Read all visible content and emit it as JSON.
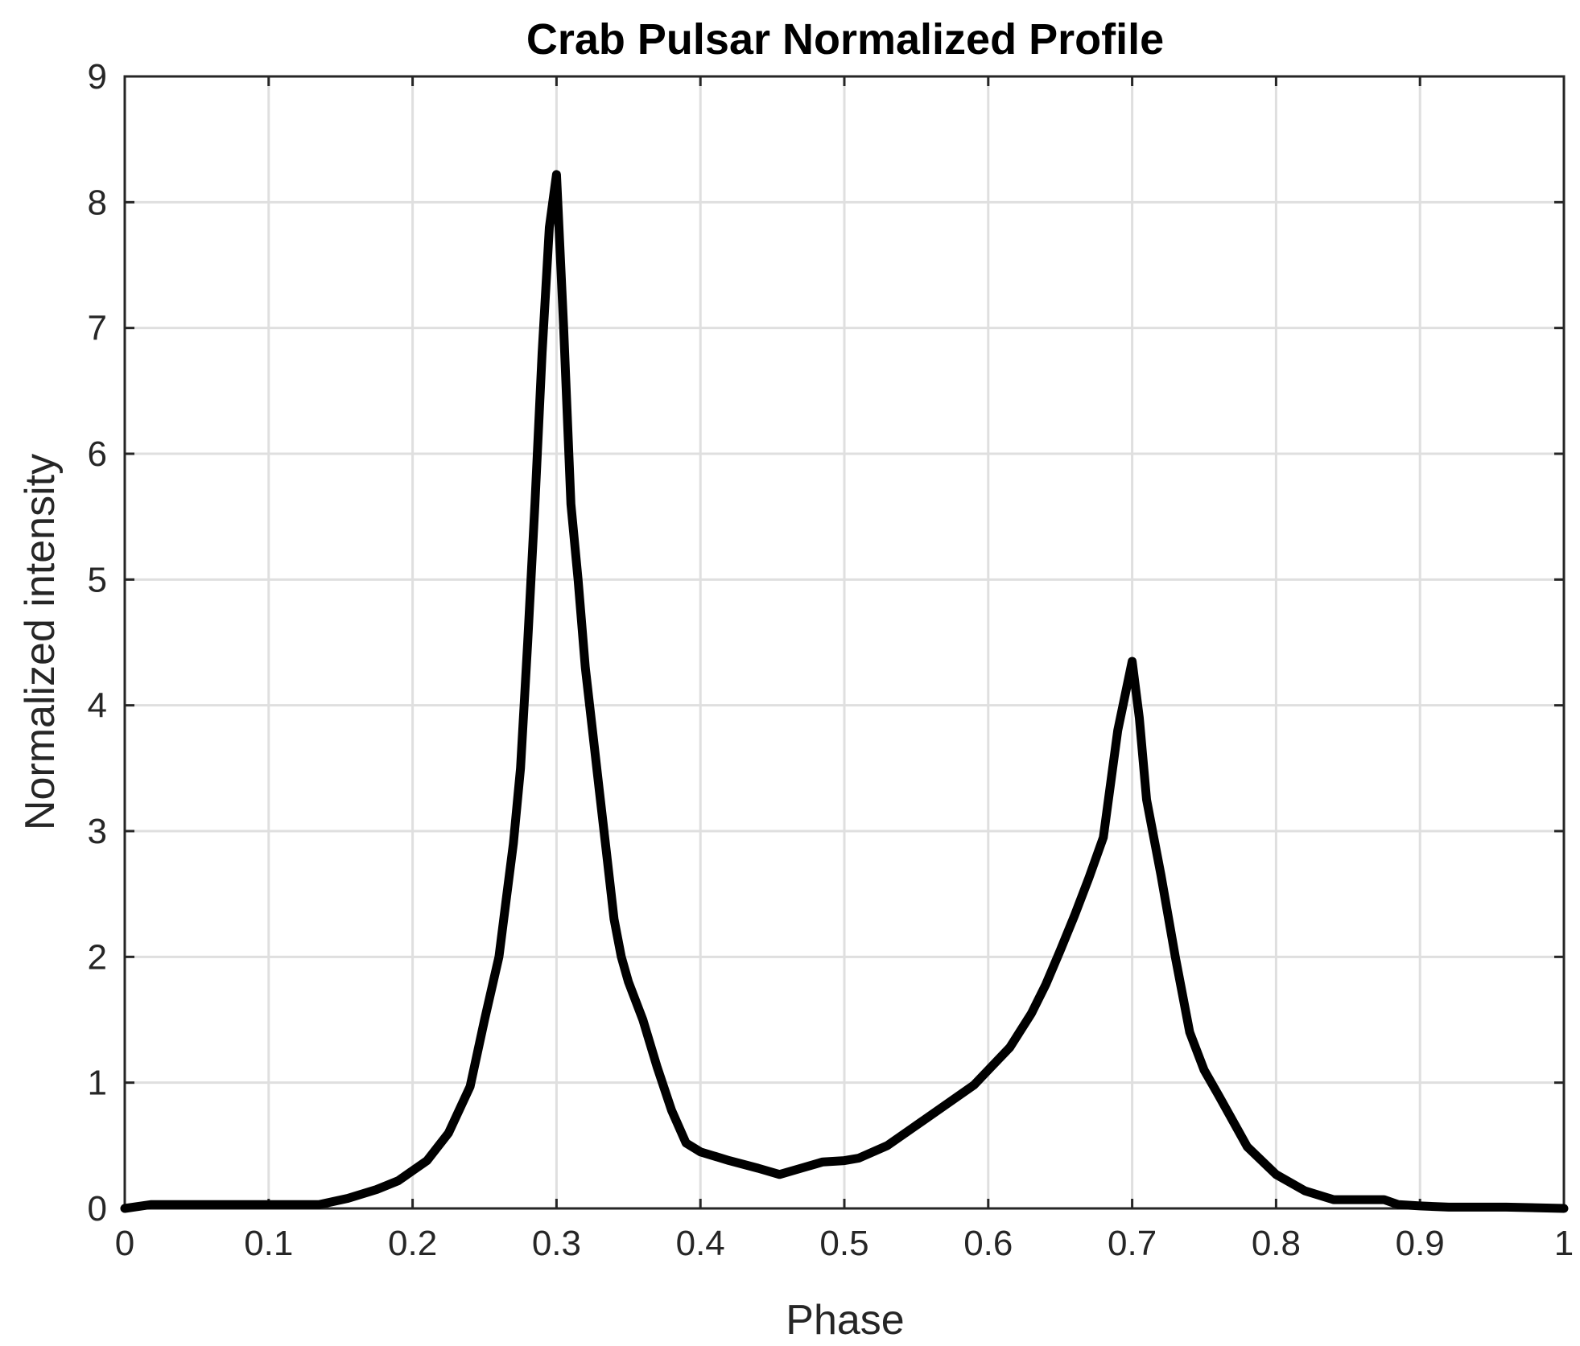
{
  "chart_data": {
    "type": "line",
    "title": "Crab Pulsar Normalized Profile",
    "xlabel": "Phase",
    "ylabel": "Normalized intensity",
    "xlim": [
      0,
      1
    ],
    "ylim": [
      0,
      9
    ],
    "x_ticks": [
      0,
      0.1,
      0.2,
      0.3,
      0.4,
      0.5,
      0.6,
      0.7,
      0.8,
      0.9,
      1
    ],
    "x_tick_labels": [
      "0",
      "0.1",
      "0.2",
      "0.3",
      "0.4",
      "0.5",
      "0.6",
      "0.7",
      "0.8",
      "0.9",
      "1"
    ],
    "y_ticks": [
      0,
      1,
      2,
      3,
      4,
      5,
      6,
      7,
      8,
      9
    ],
    "y_tick_labels": [
      "0",
      "1",
      "2",
      "3",
      "4",
      "5",
      "6",
      "7",
      "8",
      "9"
    ],
    "grid": true,
    "legend": "none",
    "series": [
      {
        "color": "#000000",
        "x": [
          0,
          0.018,
          0.035,
          0.06,
          0.09,
          0.12,
          0.135,
          0.155,
          0.175,
          0.19,
          0.21,
          0.225,
          0.24,
          0.25,
          0.26,
          0.265,
          0.27,
          0.275,
          0.28,
          0.285,
          0.29,
          0.295,
          0.3,
          0.305,
          0.31,
          0.315,
          0.32,
          0.325,
          0.33,
          0.335,
          0.34,
          0.345,
          0.35,
          0.36,
          0.37,
          0.38,
          0.39,
          0.4,
          0.42,
          0.44,
          0.455,
          0.47,
          0.485,
          0.5,
          0.51,
          0.53,
          0.55,
          0.57,
          0.59,
          0.6,
          0.615,
          0.63,
          0.64,
          0.65,
          0.66,
          0.67,
          0.68,
          0.69,
          0.7,
          0.705,
          0.71,
          0.72,
          0.73,
          0.74,
          0.75,
          0.76,
          0.78,
          0.8,
          0.82,
          0.84,
          0.86,
          0.875,
          0.885,
          0.9,
          0.92,
          0.94,
          0.96,
          1.0
        ],
        "y": [
          0.0,
          0.03,
          0.03,
          0.03,
          0.03,
          0.03,
          0.03,
          0.08,
          0.15,
          0.22,
          0.38,
          0.6,
          0.97,
          1.5,
          2.0,
          2.45,
          2.9,
          3.5,
          4.5,
          5.6,
          6.8,
          7.8,
          8.22,
          7.0,
          5.6,
          5.0,
          4.3,
          3.8,
          3.3,
          2.8,
          2.3,
          2.0,
          1.8,
          1.5,
          1.12,
          0.78,
          0.52,
          0.45,
          0.38,
          0.32,
          0.27,
          0.32,
          0.37,
          0.38,
          0.4,
          0.5,
          0.66,
          0.82,
          0.98,
          1.1,
          1.28,
          1.55,
          1.78,
          2.05,
          2.33,
          2.63,
          2.95,
          3.8,
          4.35,
          3.9,
          3.25,
          2.65,
          2.0,
          1.4,
          1.1,
          0.9,
          0.49,
          0.27,
          0.14,
          0.07,
          0.07,
          0.07,
          0.03,
          0.02,
          0.01,
          0.01,
          0.01,
          0.0
        ]
      }
    ]
  }
}
